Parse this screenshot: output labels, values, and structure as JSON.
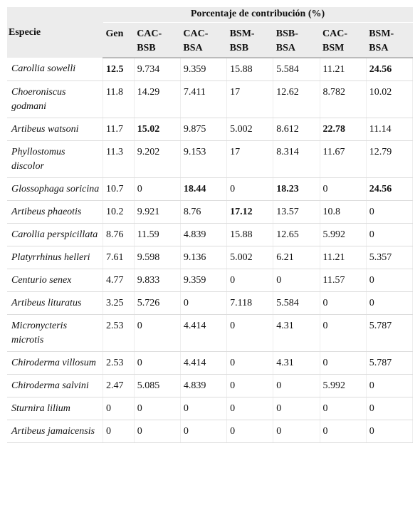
{
  "table": {
    "row_header": "Especie",
    "group_header": "Porcentaje de contribución (%)",
    "columns": [
      "Gen",
      "CAC-BSB",
      "CAC-BSA",
      "BSM-BSB",
      "BSB-BSA",
      "CAC-BSM",
      "BSM-BSA"
    ],
    "rows": [
      {
        "species": "Carollia sowelli",
        "values": [
          "12.5",
          "9.734",
          "9.359",
          "15.88",
          "5.584",
          "11.21",
          "24.56"
        ]
      },
      {
        "species": "Choeroniscus godmani",
        "values": [
          "11.8",
          "14.29",
          "7.411",
          "17",
          "12.62",
          "8.782",
          "10.02"
        ]
      },
      {
        "species": "Artibeus watsoni",
        "values": [
          "11.7",
          "15.02",
          "9.875",
          "5.002",
          "8.612",
          "22.78",
          "11.14"
        ]
      },
      {
        "species": "Phyllostomus discolor",
        "values": [
          "11.3",
          "9.202",
          "9.153",
          "17",
          "8.314",
          "11.67",
          "12.79"
        ]
      },
      {
        "species": "Glossophaga soricina",
        "values": [
          "10.7",
          "0",
          "18.44",
          "0",
          "18.23",
          "0",
          "24.56"
        ]
      },
      {
        "species": "Artibeus phaeotis",
        "values": [
          "10.2",
          "9.921",
          "8.76",
          "17.12",
          "13.57",
          "10.8",
          "0"
        ]
      },
      {
        "species": "Carollia perspicillata",
        "values": [
          "8.76",
          "11.59",
          "4.839",
          "15.88",
          "12.65",
          "5.992",
          "0"
        ]
      },
      {
        "species": "Platyrrhinus helleri",
        "values": [
          "7.61",
          "9.598",
          "9.136",
          "5.002",
          "6.21",
          "11.21",
          "5.357"
        ]
      },
      {
        "species": "Centurio senex",
        "values": [
          "4.77",
          "9.833",
          "9.359",
          "0",
          "0",
          "11.57",
          "0"
        ]
      },
      {
        "species": "Artibeus lituratus",
        "values": [
          "3.25",
          "5.726",
          "0",
          "7.118",
          "5.584",
          "0",
          "0"
        ]
      },
      {
        "species": "Micronycteris microtis",
        "values": [
          "2.53",
          "0",
          "4.414",
          "0",
          "4.31",
          "0",
          "5.787"
        ]
      },
      {
        "species": "Chiroderma villosum",
        "values": [
          "2.53",
          "0",
          "4.414",
          "0",
          "4.31",
          "0",
          "5.787"
        ]
      },
      {
        "species": "Chiroderma salvini",
        "values": [
          "2.47",
          "5.085",
          "4.839",
          "0",
          "0",
          "5.992",
          "0"
        ]
      },
      {
        "species": "Sturnira lilium",
        "values": [
          "0",
          "0",
          "0",
          "0",
          "0",
          "0",
          "0"
        ]
      },
      {
        "species": "Artibeus jamaicensis",
        "values": [
          "0",
          "0",
          "0",
          "0",
          "0",
          "0",
          "0"
        ]
      }
    ],
    "bold": [
      [
        0,
        0
      ],
      [
        0,
        6
      ],
      [
        2,
        1
      ],
      [
        2,
        5
      ],
      [
        4,
        2
      ],
      [
        4,
        4
      ],
      [
        4,
        6
      ],
      [
        5,
        3
      ]
    ]
  }
}
